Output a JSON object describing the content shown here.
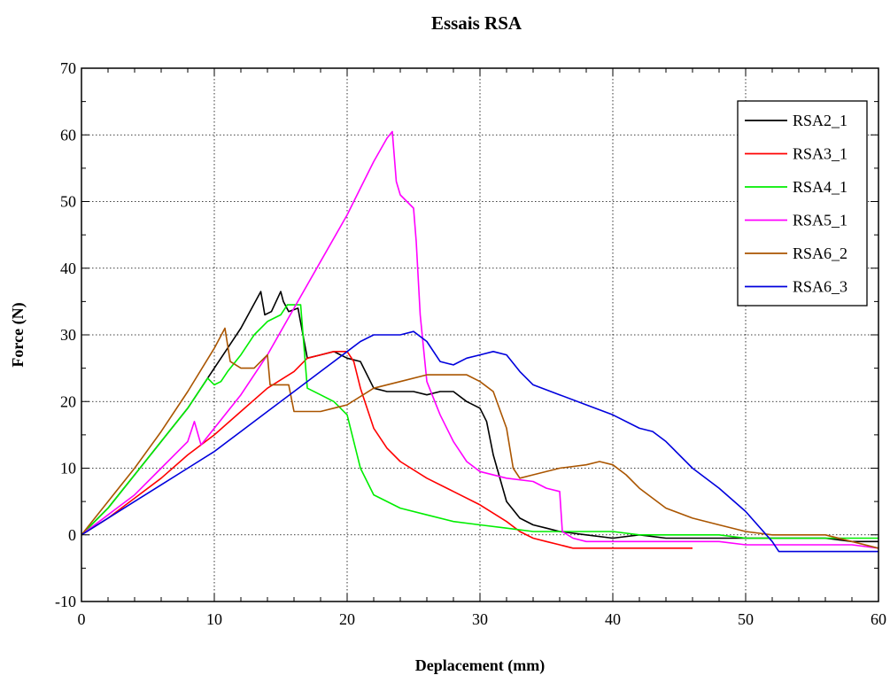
{
  "chart_data": {
    "type": "line",
    "title": "Essais RSA",
    "xlabel": "Deplacement (mm)",
    "ylabel": "Force (N)",
    "xlim": [
      0,
      60
    ],
    "ylim": [
      -10,
      70
    ],
    "xticks": [
      0,
      10,
      20,
      30,
      40,
      50,
      60
    ],
    "yticks": [
      -10,
      0,
      10,
      20,
      30,
      40,
      50,
      60,
      70
    ],
    "grid": true,
    "legend_position": "top-right",
    "series": [
      {
        "name": "RSA2_1",
        "color": "#000000",
        "x": [
          0,
          2,
          4,
          6,
          8,
          10,
          12,
          13.5,
          13.8,
          14.3,
          15,
          15.2,
          15.6,
          16.3,
          17,
          18,
          19,
          20,
          21,
          22,
          23,
          24,
          25,
          26,
          27,
          28,
          29,
          30,
          30.5,
          31,
          32,
          33,
          34,
          35,
          36,
          38,
          40,
          42,
          44,
          46,
          48,
          50,
          52,
          54,
          56,
          58,
          60
        ],
        "y": [
          0,
          4,
          9,
          14,
          19,
          25,
          31,
          36.5,
          33,
          33.5,
          36.5,
          35,
          33.5,
          34,
          26.5,
          27,
          27.5,
          26.5,
          26,
          22,
          21.5,
          21.5,
          21.5,
          21,
          21.5,
          21.5,
          20,
          19,
          17,
          12,
          5,
          2.5,
          1.5,
          1,
          0.5,
          0,
          -0.5,
          0,
          -0.5,
          -0.5,
          -0.5,
          -0.5,
          -0.5,
          -0.5,
          -0.5,
          -1,
          -1
        ]
      },
      {
        "name": "RSA3_1",
        "color": "#ff0000",
        "x": [
          0,
          2,
          4,
          6,
          8,
          10,
          12,
          14,
          16,
          17,
          18,
          19,
          19.5,
          20,
          20.5,
          21,
          22,
          23,
          24,
          26,
          28,
          30,
          32,
          33,
          34,
          35,
          36,
          37,
          38,
          40,
          42,
          44,
          46
        ],
        "y": [
          0,
          2.5,
          5.5,
          8.5,
          12,
          15,
          18.5,
          22,
          24.5,
          26.5,
          27,
          27.5,
          27.5,
          27.5,
          26,
          22,
          16,
          13,
          11,
          8.5,
          6.5,
          4.5,
          2,
          0.5,
          -0.5,
          -1,
          -1.5,
          -2,
          -2,
          -2,
          -2,
          -2,
          -2
        ]
      },
      {
        "name": "RSA4_1",
        "color": "#00ee00",
        "x": [
          0,
          2,
          4,
          6,
          8,
          9.5,
          10,
          10.5,
          11,
          12,
          13,
          14,
          15,
          15.5,
          16,
          16.5,
          17,
          18,
          19,
          20,
          21,
          22,
          23,
          24,
          26,
          28,
          30,
          32,
          34,
          36,
          38,
          40,
          42,
          44,
          46,
          48,
          50,
          52,
          54,
          56,
          58,
          60
        ],
        "y": [
          0,
          4,
          9,
          14,
          19,
          23.5,
          22.5,
          23,
          24.5,
          27,
          30,
          32,
          33,
          34.5,
          34.5,
          34.5,
          22,
          21,
          20,
          18,
          10,
          6,
          5,
          4,
          3,
          2,
          1.5,
          1,
          0.5,
          0.5,
          0.5,
          0.5,
          0,
          0,
          0,
          0,
          -0.5,
          -0.5,
          -0.5,
          -0.5,
          -0.5,
          -0.5
        ]
      },
      {
        "name": "RSA5_1",
        "color": "#ff00ff",
        "x": [
          0,
          2,
          4,
          6,
          8,
          8.5,
          9,
          10,
          12,
          14,
          16,
          18,
          20,
          21,
          22,
          23,
          23.4,
          23.7,
          24,
          24.5,
          25,
          25.2,
          25.5,
          26,
          27,
          28,
          29,
          30,
          32,
          34,
          35,
          36,
          36.2,
          37,
          38,
          40,
          42,
          44,
          46,
          48,
          50,
          52,
          54,
          56,
          58,
          60
        ],
        "y": [
          0,
          3,
          6,
          10,
          14,
          17,
          13.5,
          16,
          21,
          27,
          34,
          41,
          48,
          52,
          56,
          59.5,
          60.5,
          53,
          51,
          50,
          49,
          44,
          33,
          23,
          18,
          14,
          11,
          9.5,
          8.5,
          8,
          7,
          6.5,
          0.5,
          -0.5,
          -1,
          -1,
          -1,
          -1,
          -1,
          -1,
          -1.5,
          -1.5,
          -1.5,
          -1.5,
          -1.5,
          -2
        ]
      },
      {
        "name": "RSA6_2",
        "color": "#aa5500",
        "x": [
          0,
          2,
          4,
          6,
          8,
          10,
          10.8,
          11.2,
          12,
          13,
          14,
          14.2,
          14.6,
          15,
          15.6,
          16,
          18,
          20,
          22,
          24,
          26,
          28,
          29,
          30,
          31,
          32,
          32.5,
          33,
          34,
          36,
          38,
          39,
          40,
          41,
          42,
          43,
          44,
          46,
          48,
          50,
          52,
          54,
          56,
          58,
          60
        ],
        "y": [
          0,
          5,
          10,
          15.5,
          21.5,
          28,
          31,
          26,
          25,
          25,
          27,
          22.5,
          22.5,
          22.5,
          22.5,
          18.5,
          18.5,
          19.5,
          22,
          23,
          24,
          24,
          24,
          23,
          21.5,
          16,
          10,
          8.5,
          9,
          10,
          10.5,
          11,
          10.5,
          9,
          7,
          5.5,
          4,
          2.5,
          1.5,
          0.5,
          0,
          0,
          0,
          -1,
          -2
        ]
      },
      {
        "name": "RSA6_3",
        "color": "#0000dd",
        "x": [
          0,
          2,
          4,
          6,
          8,
          10,
          12,
          14,
          16,
          18,
          20,
          21,
          22,
          24,
          25,
          26,
          27,
          28,
          29,
          30,
          31,
          32,
          33,
          34,
          36,
          38,
          40,
          42,
          43,
          44,
          46,
          48,
          50,
          52,
          52.5,
          53,
          56,
          60
        ],
        "y": [
          0,
          2.5,
          5,
          7.5,
          10,
          12.5,
          15.5,
          18.5,
          21.5,
          24.5,
          27.5,
          29,
          30,
          30,
          30.5,
          29,
          26,
          25.5,
          26.5,
          27,
          27.5,
          27,
          24.5,
          22.5,
          21,
          19.5,
          18,
          16,
          15.5,
          14,
          10,
          7,
          3.5,
          -1,
          -2.5,
          -2.5,
          -2.5,
          -2.5
        ]
      }
    ]
  }
}
